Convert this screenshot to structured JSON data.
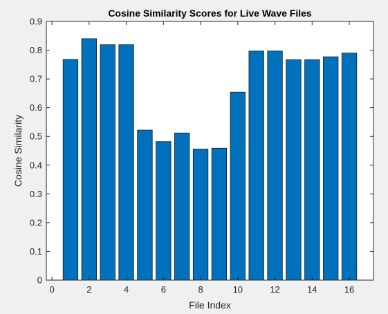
{
  "chart_data": {
    "type": "bar",
    "title": "Cosine Similarity Scores for Live Wave Files",
    "xlabel": "File Index",
    "ylabel": "Cosine Similarity",
    "x": [
      1,
      2,
      3,
      4,
      5,
      6,
      7,
      8,
      9,
      10,
      11,
      12,
      13,
      14,
      15,
      16
    ],
    "values": [
      0.768,
      0.84,
      0.819,
      0.819,
      0.522,
      0.482,
      0.512,
      0.456,
      0.459,
      0.654,
      0.797,
      0.797,
      0.767,
      0.767,
      0.777,
      0.79
    ],
    "xlim": [
      -0.3,
      17.3
    ],
    "ylim": [
      0,
      0.9
    ],
    "xticks": [
      0,
      2,
      4,
      6,
      8,
      10,
      12,
      14,
      16
    ],
    "yticks": [
      0,
      0.1,
      0.2,
      0.3,
      0.4,
      0.5,
      0.6,
      0.7,
      0.8,
      0.9
    ],
    "xtick_labels": [
      "0",
      "2",
      "4",
      "6",
      "8",
      "10",
      "12",
      "14",
      "16"
    ],
    "ytick_labels": [
      "0",
      "0.1",
      "0.2",
      "0.3",
      "0.4",
      "0.5",
      "0.6",
      "0.7",
      "0.8",
      "0.9"
    ],
    "bar_color": "#0072BD",
    "bar_edge_color": "#1a1a1a",
    "grid": false,
    "legend": "none"
  },
  "colors": {
    "figure_bg": "#f0f0f0",
    "axes_bg": "#ffffff",
    "axes_line": "#262626",
    "text": "#262626"
  }
}
